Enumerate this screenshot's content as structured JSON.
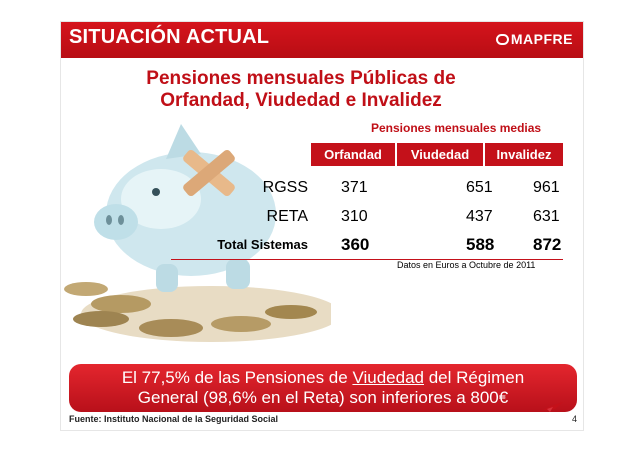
{
  "header": {
    "title": "SITUACIÓN ACTUAL",
    "brand": "MAPFRE"
  },
  "heading": {
    "line1": "Pensiones mensuales Públicas de",
    "line2": "Orfandad, Viudedad e Invalidez"
  },
  "table": {
    "caption": "Pensiones mensuales medias",
    "columns": [
      "Orfandad",
      "Viudedad",
      "Invalidez"
    ],
    "rows": [
      {
        "label": "RGSS",
        "values": [
          "371",
          "651",
          "961"
        ]
      },
      {
        "label": "RETA",
        "values": [
          "310",
          "437",
          "631"
        ]
      },
      {
        "label": "Total Sistemas",
        "values": [
          "360",
          "588",
          "872"
        ]
      }
    ],
    "note": "Datos en Euros a Octubre de 2011"
  },
  "banner": {
    "line1_a": "El 77,5% de las Pensiones de ",
    "line1_u": "Viudedad",
    "line1_b": " del Régimen",
    "line2": "General (98,6% en el Reta) son inferiores a 800€"
  },
  "footer": {
    "source": "Fuente: Instituto Nacional de la Seguridad Social",
    "page": "4"
  },
  "colors": {
    "brand_red": "#c4111a",
    "piggy": "#cfe7ee"
  },
  "icons": {
    "logo": "mapfre-logo-icon",
    "illustration": "piggy-bank-with-coins-icon",
    "flag": "spain-flag-icon"
  }
}
